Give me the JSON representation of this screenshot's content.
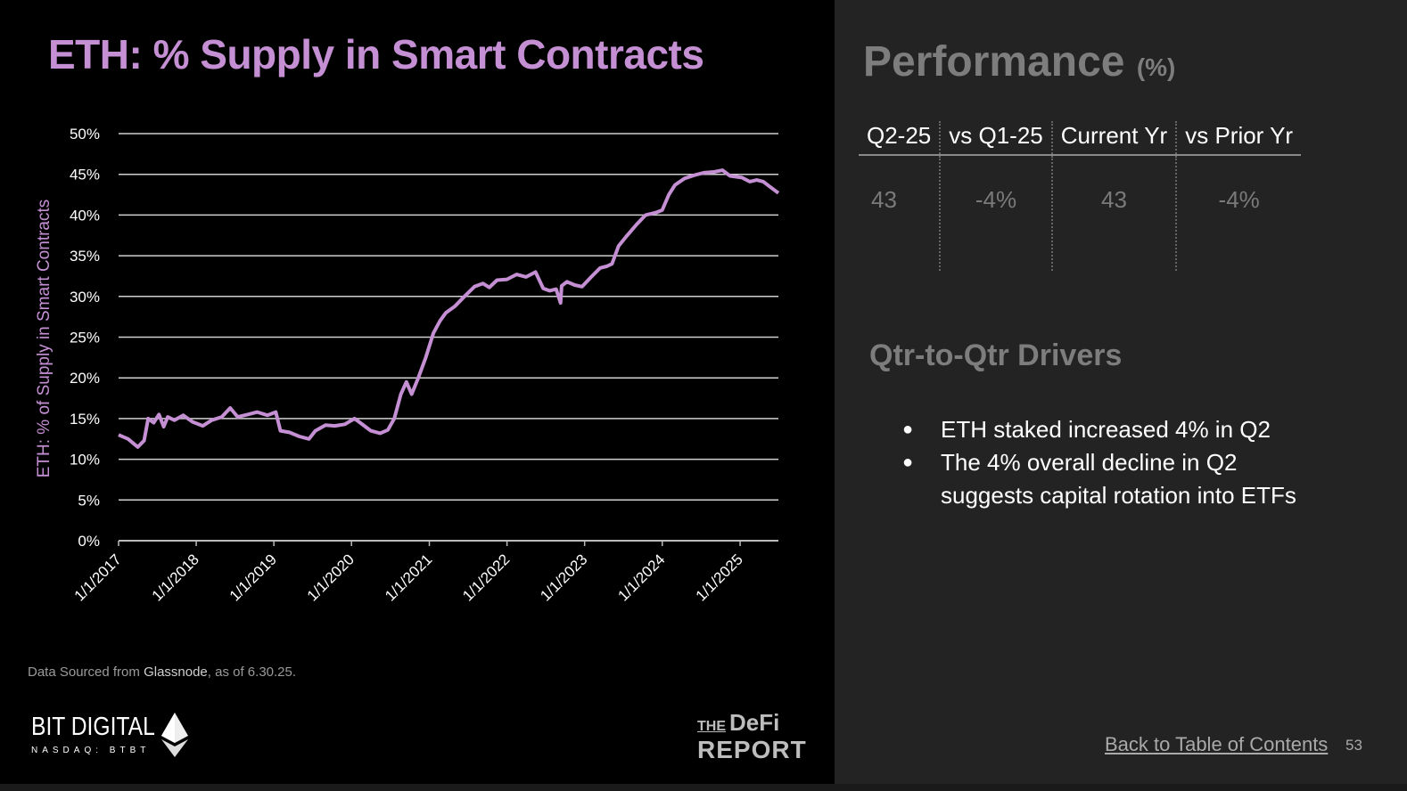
{
  "left": {
    "title": "ETH: % Supply in Smart Contracts",
    "source_prefix": "Data Sourced from ",
    "source_name": "Glassnode",
    "source_suffix": ", as of 6.30.25.",
    "logo_bitdigital": "BIT DIGITAL",
    "logo_bitdigital_sub": "NASDAQ: BTBT",
    "logo_defi_the": "THE",
    "logo_defi_1": "DeFi",
    "logo_defi_2": "REPORT"
  },
  "chart_data": {
    "type": "line",
    "title": "",
    "xlabel": "",
    "ylabel": "ETH: % of Supply in Smart Contracts",
    "ylim": [
      0,
      50
    ],
    "yticks": [
      "0%",
      "5%",
      "10%",
      "15%",
      "20%",
      "25%",
      "30%",
      "35%",
      "40%",
      "45%",
      "50%"
    ],
    "xticks": [
      "1/1/2017",
      "1/1/2018",
      "1/1/2019",
      "1/1/2020",
      "1/1/2021",
      "1/1/2022",
      "1/1/2023",
      "1/1/2024",
      "1/1/2025"
    ],
    "xlim": [
      "2017-01-01",
      "2025-06-30"
    ],
    "grid": true,
    "color": "#c58fd4",
    "x": [
      "2017-01-01",
      "2017-02-15",
      "2017-04-01",
      "2017-05-01",
      "2017-05-20",
      "2017-06-15",
      "2017-07-10",
      "2017-08-01",
      "2017-08-20",
      "2017-09-20",
      "2017-11-01",
      "2017-12-15",
      "2018-02-01",
      "2018-03-15",
      "2018-05-01",
      "2018-06-10",
      "2018-07-15",
      "2018-09-01",
      "2018-10-15",
      "2018-12-01",
      "2019-01-10",
      "2019-02-01",
      "2019-03-15",
      "2019-05-01",
      "2019-06-15",
      "2019-07-15",
      "2019-09-01",
      "2019-10-15",
      "2019-12-01",
      "2020-01-15",
      "2020-02-15",
      "2020-04-01",
      "2020-05-15",
      "2020-06-20",
      "2020-07-20",
      "2020-08-20",
      "2020-09-15",
      "2020-10-10",
      "2020-11-10",
      "2020-12-15",
      "2021-01-20",
      "2021-02-20",
      "2021-03-20",
      "2021-05-01",
      "2021-06-15",
      "2021-08-01",
      "2021-09-10",
      "2021-10-10",
      "2021-11-15",
      "2022-01-01",
      "2022-02-15",
      "2022-04-01",
      "2022-05-15",
      "2022-06-20",
      "2022-07-20",
      "2022-08-20",
      "2022-09-10",
      "2022-09-15",
      "2022-10-10",
      "2022-11-15",
      "2022-12-20",
      "2023-02-01",
      "2023-03-15",
      "2023-04-15",
      "2023-05-10",
      "2023-06-10",
      "2023-07-20",
      "2023-09-01",
      "2023-10-15",
      "2023-12-01",
      "2024-01-01",
      "2024-02-01",
      "2024-03-01",
      "2024-04-15",
      "2024-06-01",
      "2024-07-15",
      "2024-09-01",
      "2024-10-10",
      "2024-11-15",
      "2025-01-10",
      "2025-02-15",
      "2025-03-20",
      "2025-04-20",
      "2025-05-20",
      "2025-06-30"
    ],
    "values": [
      13,
      12.5,
      11.5,
      12.3,
      15,
      14.5,
      15.5,
      14,
      15.2,
      14.8,
      15.4,
      14.6,
      14.1,
      14.8,
      15.2,
      16.3,
      15.2,
      15.5,
      15.8,
      15.4,
      15.8,
      13.5,
      13.3,
      12.8,
      12.5,
      13.5,
      14.2,
      14.1,
      14.3,
      15,
      14.4,
      13.5,
      13.2,
      13.6,
      15,
      18,
      19.5,
      18,
      20,
      22.5,
      25.5,
      27,
      28,
      28.8,
      30,
      31.2,
      31.6,
      31.1,
      32,
      32.1,
      32.7,
      32.4,
      33,
      31,
      30.7,
      30.9,
      29.2,
      31.3,
      31.8,
      31.4,
      31.2,
      32.4,
      33.5,
      33.7,
      34,
      36.2,
      37.5,
      38.8,
      40,
      40.3,
      40.6,
      42.5,
      43.7,
      44.5,
      44.9,
      45.2,
      45.3,
      45.5,
      44.8,
      44.6,
      44.1,
      44.3,
      44.1,
      43.5,
      42.7
    ]
  },
  "right": {
    "title": "Performance",
    "title_unit": "(%)",
    "table": {
      "headers": [
        "Q2-25",
        "vs Q1-25",
        "Current Yr",
        "vs Prior Yr"
      ],
      "values": [
        "43",
        "-4%",
        "43",
        "-4%"
      ]
    },
    "drivers_title": "Qtr-to-Qtr Drivers",
    "drivers": [
      "ETH staked increased 4% in Q2",
      "The 4% overall decline in Q2 suggests capital rotation into ETFs"
    ],
    "toc_link": "Back to Table of Contents",
    "page_number": "53"
  }
}
